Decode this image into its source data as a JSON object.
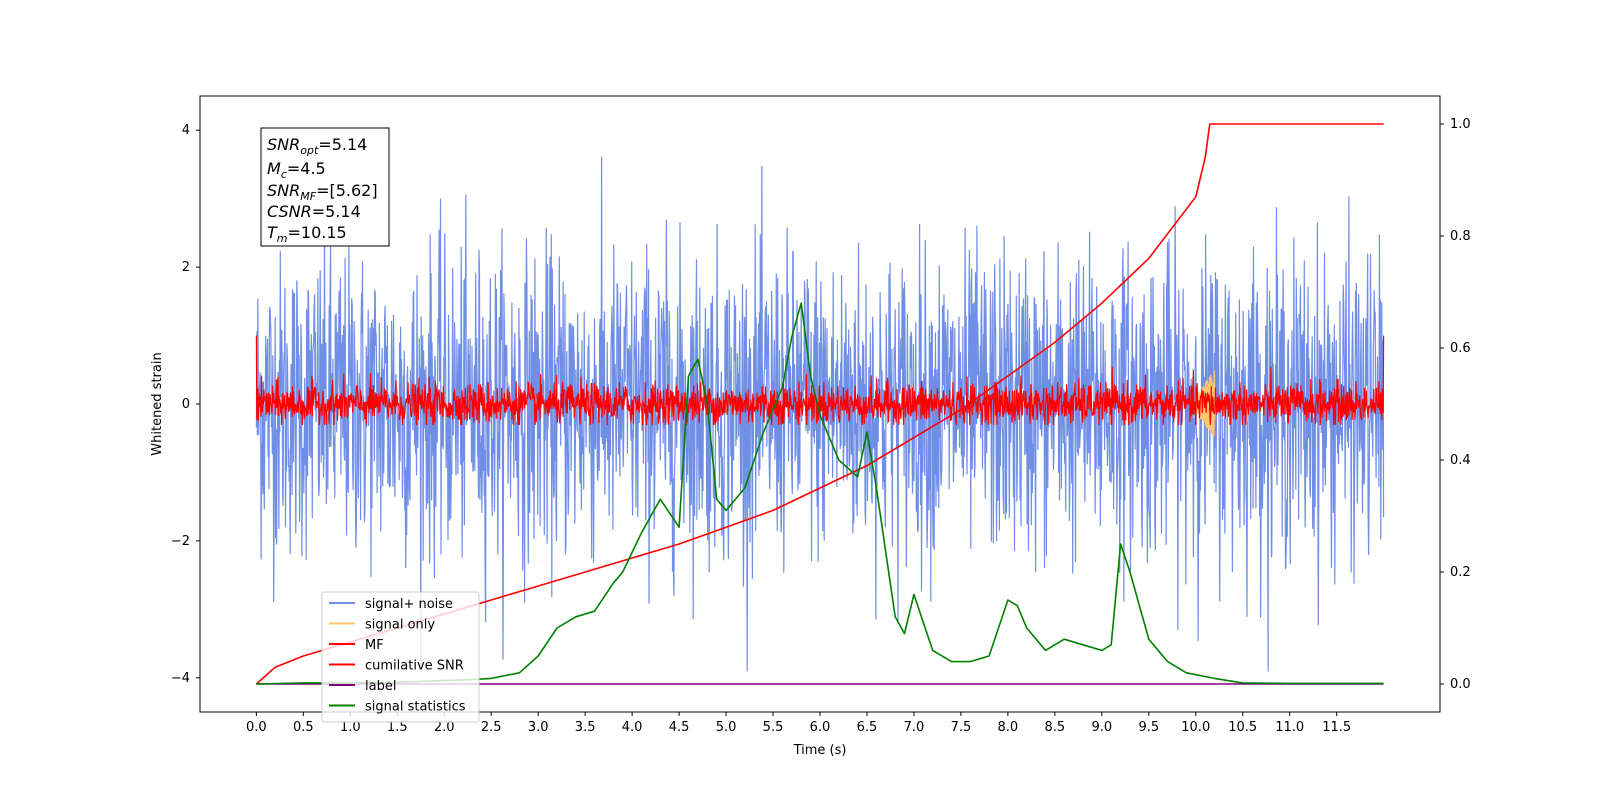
{
  "chart_data": {
    "type": "line",
    "title": "",
    "xlabel": "Time (s)",
    "ylabel": "Whitened strain",
    "xlim": [
      -0.6,
      12.6
    ],
    "ylim": [
      -4.5,
      4.5
    ],
    "y2lim": [
      -0.05,
      1.05
    ],
    "grid": false,
    "legend_position": "lower-left",
    "x_ticks": [
      "0.0",
      "0.5",
      "1.0",
      "1.5",
      "2.0",
      "2.5",
      "3.0",
      "3.5",
      "4.0",
      "4.5",
      "5.0",
      "5.5",
      "6.0",
      "6.5",
      "7.0",
      "7.5",
      "8.0",
      "8.5",
      "9.0",
      "9.5",
      "10.0",
      "10.5",
      "11.0",
      "11.5"
    ],
    "y_ticks": [
      "4",
      "2",
      "0",
      "−2",
      "−4"
    ],
    "y2_ticks": [
      "1.0",
      "0.8",
      "0.6",
      "0.4",
      "0.2",
      "0.0"
    ],
    "annotation": {
      "snr_opt": {
        "main": "SNR",
        "sub": "opt",
        "value": "=5.14"
      },
      "mc": {
        "main": "M",
        "sub": "c",
        "value": "=4.5"
      },
      "snr_mf": {
        "main": "SNR",
        "sub": "MF",
        "value": "=[5.62]"
      },
      "csnr": {
        "main": "CSNR",
        "value": "=5.14"
      },
      "tm": {
        "main": "T",
        "sub": "m",
        "value": "=10.15"
      }
    },
    "series": [
      {
        "name": "signal+ noise",
        "color": "#6f8ee6",
        "axis": "left",
        "kind": "noise",
        "sigma": 1.0,
        "range": [
          0,
          12.0
        ]
      },
      {
        "name": "signal only",
        "color": "#ffc66e",
        "axis": "left",
        "kind": "chirp",
        "range": [
          10.0,
          10.2
        ]
      },
      {
        "name": "MF",
        "color": "#ff0000",
        "axis": "left",
        "kind": "noise",
        "sigma": 0.15,
        "range": [
          0,
          12.0
        ]
      },
      {
        "name": "cumilative SNR",
        "color": "#ff0000",
        "axis": "right",
        "x": [
          0.0,
          0.2,
          0.5,
          1.0,
          1.5,
          2.0,
          2.5,
          3.0,
          3.5,
          4.0,
          4.5,
          5.0,
          5.5,
          6.0,
          6.5,
          7.0,
          7.5,
          8.0,
          8.5,
          9.0,
          9.5,
          10.0,
          10.1,
          10.15,
          12.0
        ],
        "y": [
          0.0,
          0.03,
          0.05,
          0.075,
          0.1,
          0.125,
          0.15,
          0.175,
          0.2,
          0.225,
          0.25,
          0.28,
          0.31,
          0.35,
          0.39,
          0.44,
          0.49,
          0.55,
          0.61,
          0.68,
          0.76,
          0.87,
          0.94,
          1.0,
          1.0
        ]
      },
      {
        "name": "label",
        "color": "#800080",
        "axis": "right",
        "x": [
          0.0,
          12.0
        ],
        "y": [
          0.0,
          0.0
        ]
      },
      {
        "name": "signal statistics",
        "color": "#008000",
        "axis": "right",
        "x": [
          0.0,
          0.5,
          1.0,
          1.5,
          2.0,
          2.3,
          2.5,
          2.8,
          3.0,
          3.2,
          3.4,
          3.6,
          3.8,
          3.9,
          4.1,
          4.3,
          4.5,
          4.6,
          4.7,
          4.8,
          4.9,
          5.0,
          5.2,
          5.4,
          5.6,
          5.7,
          5.8,
          5.9,
          6.0,
          6.2,
          6.4,
          6.5,
          6.6,
          6.8,
          6.9,
          7.0,
          7.2,
          7.4,
          7.6,
          7.8,
          8.0,
          8.1,
          8.2,
          8.4,
          8.6,
          8.8,
          9.0,
          9.1,
          9.2,
          9.3,
          9.5,
          9.7,
          9.9,
          10.2,
          10.5,
          11.0,
          12.0
        ],
        "y": [
          0.0,
          0.002,
          0.002,
          0.003,
          0.006,
          0.008,
          0.01,
          0.02,
          0.05,
          0.1,
          0.12,
          0.13,
          0.18,
          0.2,
          0.27,
          0.33,
          0.28,
          0.55,
          0.58,
          0.5,
          0.33,
          0.31,
          0.35,
          0.45,
          0.53,
          0.62,
          0.68,
          0.55,
          0.48,
          0.4,
          0.37,
          0.45,
          0.35,
          0.12,
          0.09,
          0.16,
          0.06,
          0.04,
          0.04,
          0.05,
          0.15,
          0.14,
          0.1,
          0.06,
          0.08,
          0.07,
          0.06,
          0.07,
          0.25,
          0.2,
          0.08,
          0.04,
          0.02,
          0.01,
          0.002,
          0.001,
          0.001
        ]
      }
    ]
  }
}
